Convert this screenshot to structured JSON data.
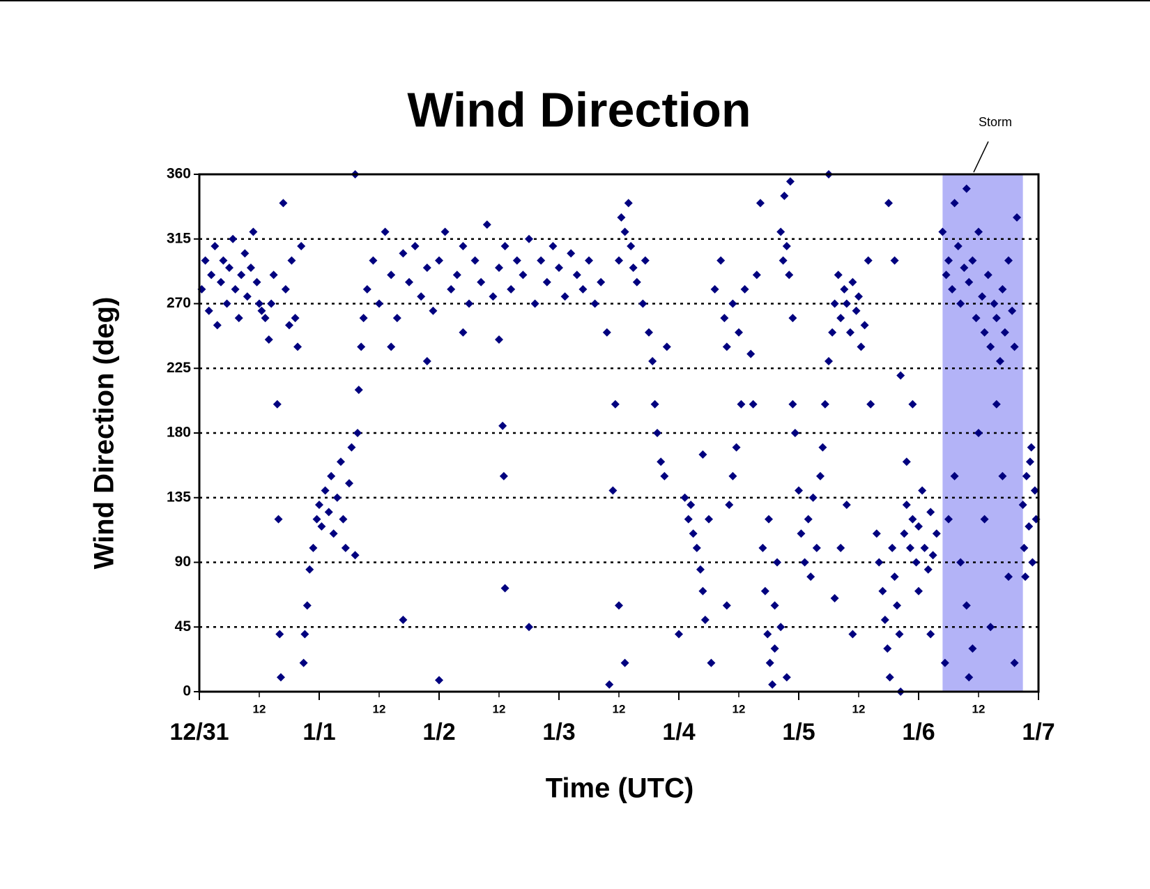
{
  "chart_data": {
    "type": "scatter",
    "title": "Wind Direction",
    "xlabel": "Time (UTC)",
    "ylabel": "Wind Direction (deg)",
    "color": "#00007f",
    "marker": "diamond",
    "grid": true,
    "xlim": [
      0,
      7
    ],
    "ylim": [
      0,
      360
    ],
    "xticks": [
      {
        "value": 0,
        "label": "12/31"
      },
      {
        "value": 1,
        "label": "1/1"
      },
      {
        "value": 2,
        "label": "1/2"
      },
      {
        "value": 3,
        "label": "1/3"
      },
      {
        "value": 4,
        "label": "1/4"
      },
      {
        "value": 5,
        "label": "1/5"
      },
      {
        "value": 6,
        "label": "1/6"
      },
      {
        "value": 7,
        "label": "1/7"
      }
    ],
    "xminor_ticks": [
      {
        "value": 0.5,
        "label": "12"
      },
      {
        "value": 1.5,
        "label": "12"
      },
      {
        "value": 2.5,
        "label": "12"
      },
      {
        "value": 3.5,
        "label": "12"
      },
      {
        "value": 4.5,
        "label": "12"
      },
      {
        "value": 5.5,
        "label": "12"
      },
      {
        "value": 6.5,
        "label": "12"
      }
    ],
    "yticks": [
      0,
      45,
      90,
      135,
      180,
      225,
      270,
      315,
      360
    ],
    "shade": {
      "label": "Storm",
      "xlim": [
        6.2,
        6.87
      ],
      "color": "#b3b3f7"
    },
    "x": [
      0.02,
      0.05,
      0.08,
      0.1,
      0.13,
      0.15,
      0.18,
      0.2,
      0.23,
      0.25,
      0.28,
      0.3,
      0.33,
      0.35,
      0.38,
      0.4,
      0.43,
      0.45,
      0.48,
      0.5,
      0.52,
      0.55,
      0.58,
      0.6,
      0.62,
      0.65,
      0.66,
      0.67,
      0.68,
      0.7,
      0.72,
      0.75,
      0.77,
      0.8,
      0.82,
      0.85,
      0.87,
      0.88,
      0.9,
      0.92,
      0.95,
      0.98,
      1.0,
      1.02,
      1.05,
      1.08,
      1.1,
      1.12,
      1.15,
      1.18,
      1.2,
      1.22,
      1.25,
      1.27,
      1.3,
      1.32,
      1.33,
      1.35,
      1.37,
      1.3,
      1.4,
      1.45,
      1.5,
      1.55,
      1.6,
      1.65,
      1.7,
      1.75,
      1.8,
      1.85,
      1.9,
      1.95,
      2.0,
      2.05,
      2.1,
      2.15,
      2.2,
      2.25,
      2.3,
      2.35,
      2.4,
      2.45,
      2.5,
      2.55,
      2.6,
      2.65,
      2.7,
      2.75,
      2.8,
      2.85,
      2.9,
      2.95,
      3.0,
      3.05,
      3.1,
      3.15,
      3.2,
      3.25,
      3.3,
      3.35,
      1.6,
      1.9,
      2.2,
      2.5,
      2.53,
      2.54,
      2.55,
      2.75,
      2.0,
      1.7,
      3.4,
      3.42,
      3.45,
      3.47,
      3.5,
      3.52,
      3.55,
      3.58,
      3.6,
      3.62,
      3.5,
      3.55,
      3.65,
      3.7,
      3.72,
      3.75,
      3.78,
      3.8,
      3.82,
      3.85,
      3.88,
      3.9,
      4.0,
      4.05,
      4.08,
      4.1,
      4.12,
      4.15,
      4.18,
      4.2,
      4.22,
      4.25,
      4.27,
      4.2,
      4.3,
      4.35,
      4.38,
      4.4,
      4.45,
      4.5,
      4.55,
      4.6,
      4.52,
      4.48,
      4.45,
      4.42,
      4.4,
      4.65,
      4.68,
      4.62,
      4.7,
      4.72,
      4.74,
      4.76,
      4.78,
      4.8,
      4.82,
      4.75,
      4.85,
      4.88,
      4.9,
      4.92,
      4.95,
      4.93,
      4.87,
      4.97,
      4.8,
      4.9,
      4.85,
      4.95,
      5.0,
      5.02,
      5.05,
      5.08,
      5.1,
      5.12,
      5.15,
      5.18,
      5.2,
      5.22,
      5.25,
      5.28,
      5.3,
      5.33,
      5.35,
      5.38,
      5.4,
      5.43,
      5.45,
      5.48,
      5.5,
      5.52,
      5.55,
      5.58,
      5.3,
      5.35,
      5.4,
      5.25,
      5.6,
      5.45,
      5.65,
      5.67,
      5.7,
      5.72,
      5.74,
      5.76,
      5.78,
      5.8,
      5.82,
      5.84,
      5.75,
      5.8,
      5.85,
      5.88,
      5.9,
      5.93,
      5.95,
      5.98,
      6.0,
      6.03,
      6.05,
      6.08,
      6.1,
      6.12,
      5.9,
      6.0,
      6.15,
      5.95,
      5.85,
      6.1,
      6.2,
      6.23,
      6.25,
      6.28,
      6.3,
      6.33,
      6.35,
      6.38,
      6.4,
      6.42,
      6.45,
      6.48,
      6.5,
      6.53,
      6.55,
      6.58,
      6.6,
      6.63,
      6.65,
      6.68,
      6.7,
      6.72,
      6.75,
      6.78,
      6.8,
      6.82,
      6.22,
      6.3,
      6.35,
      6.4,
      6.45,
      6.5,
      6.55,
      6.6,
      6.65,
      6.7,
      6.75,
      6.25,
      6.42,
      6.8,
      6.87,
      6.88,
      6.9,
      6.92,
      6.94,
      6.95,
      6.97,
      6.98,
      6.89,
      6.93
    ],
    "values": [
      280,
      300,
      265,
      290,
      310,
      255,
      285,
      300,
      270,
      295,
      315,
      280,
      260,
      290,
      305,
      275,
      295,
      320,
      285,
      270,
      265,
      260,
      245,
      270,
      290,
      200,
      120,
      40,
      10,
      340,
      280,
      255,
      300,
      260,
      240,
      310,
      20,
      40,
      60,
      85,
      100,
      120,
      130,
      115,
      140,
      125,
      150,
      110,
      135,
      160,
      120,
      100,
      145,
      170,
      95,
      180,
      210,
      240,
      260,
      360,
      280,
      300,
      270,
      320,
      290,
      260,
      305,
      285,
      310,
      275,
      295,
      265,
      300,
      320,
      280,
      290,
      310,
      270,
      300,
      285,
      325,
      275,
      295,
      310,
      280,
      300,
      290,
      315,
      270,
      300,
      285,
      310,
      295,
      275,
      305,
      290,
      280,
      300,
      270,
      285,
      240,
      230,
      250,
      245,
      185,
      150,
      72,
      45,
      8,
      50,
      250,
      5,
      140,
      200,
      300,
      330,
      320,
      340,
      310,
      295,
      60,
      20,
      285,
      270,
      300,
      250,
      230,
      200,
      180,
      160,
      150,
      240,
      40,
      135,
      120,
      130,
      110,
      100,
      85,
      70,
      50,
      120,
      20,
      165,
      280,
      300,
      260,
      240,
      270,
      250,
      280,
      235,
      200,
      170,
      150,
      130,
      60,
      290,
      340,
      200,
      100,
      70,
      40,
      20,
      5,
      60,
      90,
      120,
      320,
      345,
      310,
      290,
      260,
      355,
      300,
      180,
      30,
      10,
      45,
      200,
      140,
      110,
      90,
      120,
      80,
      135,
      100,
      150,
      170,
      200,
      230,
      250,
      270,
      290,
      260,
      280,
      270,
      250,
      285,
      265,
      275,
      240,
      255,
      300,
      65,
      100,
      130,
      360,
      200,
      40,
      110,
      90,
      70,
      50,
      30,
      10,
      100,
      80,
      60,
      40,
      340,
      300,
      0,
      110,
      130,
      100,
      120,
      90,
      115,
      140,
      100,
      85,
      125,
      95,
      160,
      70,
      110,
      200,
      220,
      40,
      320,
      290,
      300,
      280,
      340,
      310,
      270,
      295,
      350,
      285,
      300,
      260,
      320,
      275,
      250,
      290,
      240,
      270,
      260,
      230,
      280,
      250,
      300,
      265,
      240,
      330,
      20,
      150,
      90,
      60,
      30,
      180,
      120,
      45,
      200,
      150,
      80,
      120,
      10,
      20,
      130,
      100,
      150,
      115,
      170,
      90,
      140,
      120,
      80,
      160
    ]
  }
}
